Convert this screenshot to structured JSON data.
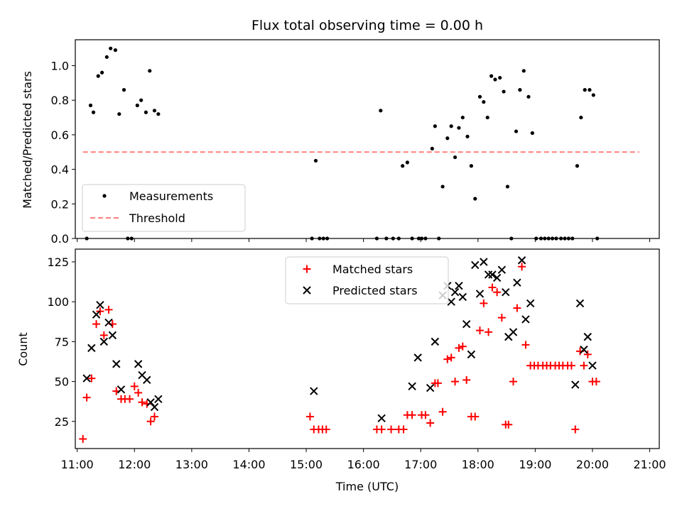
{
  "chart_data": [
    {
      "type": "scatter",
      "title": "Flux total observing time = 0.00 h",
      "ylabel": "Matched/Predicted stars",
      "xlabel": "",
      "xlim": [
        "10:58",
        "21:10"
      ],
      "ylim": [
        0,
        1.15
      ],
      "y_ticks": [
        "0.0",
        "0.2",
        "0.4",
        "0.6",
        "0.8",
        "1.0"
      ],
      "grid": false,
      "legend": {
        "location": "lower-left",
        "entries": [
          "Measurements",
          "Threshold"
        ]
      },
      "colors": {
        "measurements": "#000000",
        "threshold": "#ff7f7f"
      },
      "series": [
        {
          "name": "Measurements",
          "marker": "dot",
          "points": [
            [
              "11:10",
              0.0
            ],
            [
              "11:14",
              0.77
            ],
            [
              "11:17",
              0.73
            ],
            [
              "11:22",
              0.94
            ],
            [
              "11:26",
              0.96
            ],
            [
              "11:31",
              1.05
            ],
            [
              "11:35",
              1.1
            ],
            [
              "11:40",
              1.09
            ],
            [
              "11:44",
              0.72
            ],
            [
              "11:49",
              0.86
            ],
            [
              "11:53",
              0.0
            ],
            [
              "11:57",
              0.0
            ],
            [
              "12:03",
              0.77
            ],
            [
              "12:07",
              0.8
            ],
            [
              "12:12",
              0.73
            ],
            [
              "12:16",
              0.97
            ],
            [
              "12:21",
              0.74
            ],
            [
              "12:25",
              0.72
            ],
            [
              "15:06",
              0.0
            ],
            [
              "15:10",
              0.45
            ],
            [
              "15:14",
              0.0
            ],
            [
              "15:18",
              0.0
            ],
            [
              "15:22",
              0.0
            ],
            [
              "16:14",
              0.0
            ],
            [
              "16:18",
              0.74
            ],
            [
              "16:24",
              0.0
            ],
            [
              "16:31",
              0.0
            ],
            [
              "16:37",
              0.0
            ],
            [
              "16:41",
              0.42
            ],
            [
              "16:46",
              0.44
            ],
            [
              "16:51",
              0.0
            ],
            [
              "16:58",
              0.0
            ],
            [
              "17:01",
              0.0
            ],
            [
              "17:05",
              0.0
            ],
            [
              "17:12",
              0.52
            ],
            [
              "17:15",
              0.65
            ],
            [
              "17:19",
              0.0
            ],
            [
              "17:23",
              0.3
            ],
            [
              "17:28",
              0.58
            ],
            [
              "17:32",
              0.65
            ],
            [
              "17:36",
              0.47
            ],
            [
              "17:40",
              0.64
            ],
            [
              "17:44",
              0.7
            ],
            [
              "17:49",
              0.59
            ],
            [
              "17:53",
              0.42
            ],
            [
              "17:57",
              0.23
            ],
            [
              "18:02",
              0.82
            ],
            [
              "18:06",
              0.79
            ],
            [
              "18:10",
              0.7
            ],
            [
              "18:14",
              0.94
            ],
            [
              "18:18",
              0.92
            ],
            [
              "18:23",
              0.93
            ],
            [
              "18:27",
              0.85
            ],
            [
              "18:31",
              0.3
            ],
            [
              "18:35",
              0.0
            ],
            [
              "18:40",
              0.62
            ],
            [
              "18:44",
              0.86
            ],
            [
              "18:48",
              0.97
            ],
            [
              "18:53",
              0.82
            ],
            [
              "18:57",
              0.61
            ],
            [
              "19:01",
              0.0
            ],
            [
              "19:06",
              0.0
            ],
            [
              "19:10",
              0.0
            ],
            [
              "19:14",
              0.0
            ],
            [
              "19:18",
              0.0
            ],
            [
              "19:22",
              0.0
            ],
            [
              "19:27",
              0.0
            ],
            [
              "19:31",
              0.0
            ],
            [
              "19:35",
              0.0
            ],
            [
              "19:39",
              0.0
            ],
            [
              "19:44",
              0.42
            ],
            [
              "19:48",
              0.7
            ],
            [
              "19:52",
              0.86
            ],
            [
              "19:57",
              0.86
            ],
            [
              "20:01",
              0.83
            ],
            [
              "20:05",
              0.0
            ]
          ]
        },
        {
          "name": "Threshold",
          "style": "dashed",
          "points": [
            [
              "11:06",
              0.5
            ],
            [
              "20:49",
              0.5
            ]
          ]
        }
      ]
    },
    {
      "type": "scatter",
      "title": "",
      "xlabel": "Time (UTC)",
      "ylabel": "Count",
      "xlim": [
        "10:58",
        "21:10"
      ],
      "ylim": [
        8,
        133
      ],
      "x_ticks": [
        "11:00",
        "12:00",
        "13:00",
        "14:00",
        "15:00",
        "16:00",
        "17:00",
        "18:00",
        "19:00",
        "20:00",
        "21:00"
      ],
      "y_ticks": [
        "25",
        "50",
        "75",
        "100",
        "125"
      ],
      "grid": false,
      "legend": {
        "location": "top-center",
        "entries": [
          "Matched stars",
          "Predicted stars"
        ]
      },
      "colors": {
        "matched": "#ff0000",
        "predicted": "#000000"
      },
      "series": [
        {
          "name": "Matched stars",
          "marker": "plus",
          "points": [
            [
              "11:06",
              14
            ],
            [
              "11:10",
              40
            ],
            [
              "11:15",
              52
            ],
            [
              "11:20",
              86
            ],
            [
              "11:24",
              94
            ],
            [
              "11:28",
              79
            ],
            [
              "11:33",
              95
            ],
            [
              "11:37",
              86
            ],
            [
              "11:41",
              44
            ],
            [
              "11:46",
              39
            ],
            [
              "11:50",
              39
            ],
            [
              "11:55",
              39
            ],
            [
              "12:00",
              47
            ],
            [
              "12:04",
              43
            ],
            [
              "12:08",
              37
            ],
            [
              "12:13",
              36
            ],
            [
              "12:17",
              25
            ],
            [
              "12:21",
              28
            ],
            [
              "15:04",
              28
            ],
            [
              "15:08",
              20
            ],
            [
              "15:13",
              20
            ],
            [
              "15:17",
              20
            ],
            [
              "15:21",
              20
            ],
            [
              "16:14",
              20
            ],
            [
              "16:19",
              20
            ],
            [
              "16:29",
              20
            ],
            [
              "16:37",
              20
            ],
            [
              "16:42",
              20
            ],
            [
              "16:46",
              29
            ],
            [
              "16:51",
              29
            ],
            [
              "17:01",
              29
            ],
            [
              "17:05",
              29
            ],
            [
              "17:10",
              24
            ],
            [
              "17:15",
              49
            ],
            [
              "17:18",
              49
            ],
            [
              "17:23",
              31
            ],
            [
              "17:28",
              64
            ],
            [
              "17:32",
              65
            ],
            [
              "17:36",
              50
            ],
            [
              "17:40",
              71
            ],
            [
              "17:44",
              72
            ],
            [
              "17:48",
              51
            ],
            [
              "17:53",
              28
            ],
            [
              "17:57",
              28
            ],
            [
              "18:02",
              82
            ],
            [
              "18:06",
              99
            ],
            [
              "18:11",
              81
            ],
            [
              "18:15",
              109
            ],
            [
              "18:20",
              106
            ],
            [
              "18:25",
              90
            ],
            [
              "18:29",
              23
            ],
            [
              "18:32",
              23
            ],
            [
              "18:37",
              50
            ],
            [
              "18:41",
              96
            ],
            [
              "18:46",
              122
            ],
            [
              "18:50",
              73
            ],
            [
              "18:55",
              60
            ],
            [
              "18:59",
              60
            ],
            [
              "19:03",
              60
            ],
            [
              "19:08",
              60
            ],
            [
              "19:12",
              60
            ],
            [
              "19:16",
              60
            ],
            [
              "19:21",
              60
            ],
            [
              "19:25",
              60
            ],
            [
              "19:29",
              60
            ],
            [
              "19:34",
              60
            ],
            [
              "19:38",
              60
            ],
            [
              "19:42",
              20
            ],
            [
              "19:47",
              69
            ],
            [
              "19:51",
              60
            ],
            [
              "19:55",
              67
            ],
            [
              "20:00",
              50
            ],
            [
              "20:04",
              50
            ]
          ]
        },
        {
          "name": "Predicted stars",
          "marker": "x",
          "points": [
            [
              "11:10",
              52
            ],
            [
              "11:15",
              71
            ],
            [
              "11:20",
              92
            ],
            [
              "11:24",
              98
            ],
            [
              "11:28",
              75
            ],
            [
              "11:33",
              87
            ],
            [
              "11:37",
              79
            ],
            [
              "11:41",
              61
            ],
            [
              "11:46",
              45
            ],
            [
              "12:04",
              61
            ],
            [
              "12:08",
              54
            ],
            [
              "12:13",
              51
            ],
            [
              "12:17",
              37
            ],
            [
              "12:21",
              34
            ],
            [
              "12:25",
              39
            ],
            [
              "15:08",
              44
            ],
            [
              "16:19",
              27
            ],
            [
              "16:51",
              47
            ],
            [
              "16:57",
              65
            ],
            [
              "17:10",
              46
            ],
            [
              "17:15",
              75
            ],
            [
              "17:23",
              104
            ],
            [
              "17:28",
              110
            ],
            [
              "17:32",
              100
            ],
            [
              "17:36",
              106
            ],
            [
              "17:40",
              110
            ],
            [
              "17:44",
              103
            ],
            [
              "17:48",
              86
            ],
            [
              "17:53",
              67
            ],
            [
              "17:57",
              123
            ],
            [
              "18:02",
              105
            ],
            [
              "18:06",
              125
            ],
            [
              "18:11",
              117
            ],
            [
              "18:15",
              117
            ],
            [
              "18:20",
              115
            ],
            [
              "18:25",
              120
            ],
            [
              "18:29",
              106
            ],
            [
              "18:32",
              78
            ],
            [
              "18:37",
              81
            ],
            [
              "18:41",
              112
            ],
            [
              "18:46",
              126
            ],
            [
              "18:50",
              89
            ],
            [
              "18:55",
              99
            ],
            [
              "19:42",
              48
            ],
            [
              "19:47",
              99
            ],
            [
              "19:51",
              70
            ],
            [
              "19:55",
              78
            ],
            [
              "20:00",
              60
            ]
          ]
        }
      ]
    }
  ]
}
